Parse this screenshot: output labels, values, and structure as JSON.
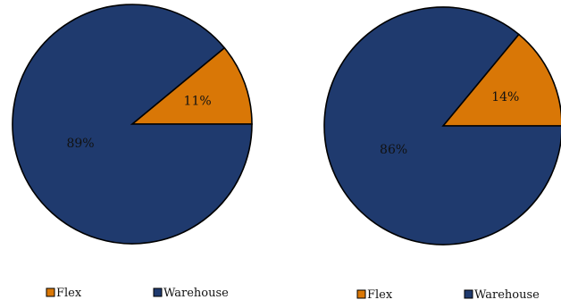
{
  "chart_data": [
    {
      "type": "pie",
      "series": [
        {
          "name": "Flex",
          "value": 11,
          "label": "11%",
          "color": "#D97706"
        },
        {
          "name": "Warehouse",
          "value": 89,
          "label": "89%",
          "color": "#1F3A6E"
        }
      ],
      "legend": [
        "Flex",
        "Warehouse"
      ],
      "legend_position": "bottom"
    },
    {
      "type": "pie",
      "series": [
        {
          "name": "Flex",
          "value": 14,
          "label": "14%",
          "color": "#D97706"
        },
        {
          "name": "Warehouse",
          "value": 86,
          "label": "86%",
          "color": "#1F3A6E"
        }
      ],
      "legend": [
        "Flex",
        "Warehouse"
      ],
      "legend_position": "bottom"
    }
  ],
  "outline_color": "#000000"
}
